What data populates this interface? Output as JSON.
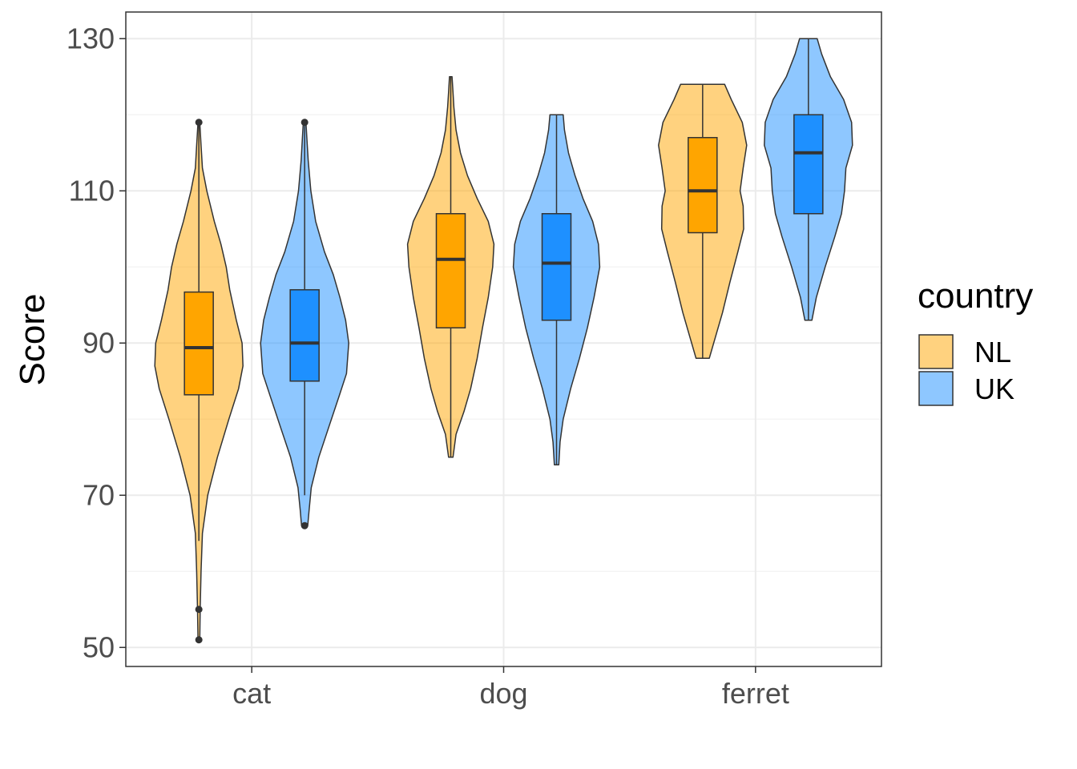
{
  "chart_data": {
    "type": "violin",
    "xlabel": "",
    "ylabel": "Score",
    "categories": [
      "cat",
      "dog",
      "ferret"
    ],
    "y_ticks": [
      "50",
      "70",
      "90",
      "110",
      "130"
    ],
    "ylim": [
      47.5,
      133.5
    ],
    "grid": true,
    "legend": {
      "title": "country",
      "placement": "right",
      "entries": [
        {
          "label": "NL",
          "color": "#ffa500"
        },
        {
          "label": "UK",
          "color": "#1e90ff"
        }
      ]
    },
    "series": [
      {
        "name": "NL",
        "color": "#ffa500",
        "groups": [
          {
            "category": "cat",
            "min": 51,
            "max": 119,
            "box": {
              "q1": 83.2,
              "median": 89.4,
              "q3": 96.7,
              "whisker_low": 64,
              "whisker_high": 119
            },
            "outliers": [
              51,
              55
            ],
            "density": [
              [
                51,
                0.02
              ],
              [
                55,
                0.03
              ],
              [
                60,
                0.05
              ],
              [
                65,
                0.08
              ],
              [
                70,
                0.2
              ],
              [
                75,
                0.42
              ],
              [
                80,
                0.68
              ],
              [
                84,
                0.9
              ],
              [
                87,
                1.0
              ],
              [
                90,
                0.98
              ],
              [
                93,
                0.85
              ],
              [
                97,
                0.7
              ],
              [
                100,
                0.62
              ],
              [
                103,
                0.5
              ],
              [
                106,
                0.35
              ],
              [
                110,
                0.18
              ],
              [
                113,
                0.08
              ],
              [
                116,
                0.05
              ],
              [
                119,
                0.02
              ]
            ]
          },
          {
            "category": "dog",
            "min": 75,
            "max": 125,
            "box": {
              "q1": 92,
              "median": 101,
              "q3": 107,
              "whisker_low": 75,
              "whisker_high": 125
            },
            "outliers": [],
            "density": [
              [
                75,
                0.05
              ],
              [
                78,
                0.12
              ],
              [
                81,
                0.3
              ],
              [
                84,
                0.45
              ],
              [
                88,
                0.6
              ],
              [
                92,
                0.72
              ],
              [
                96,
                0.85
              ],
              [
                100,
                0.95
              ],
              [
                103,
                0.98
              ],
              [
                106,
                0.85
              ],
              [
                109,
                0.6
              ],
              [
                112,
                0.38
              ],
              [
                115,
                0.22
              ],
              [
                118,
                0.12
              ],
              [
                121,
                0.07
              ],
              [
                123,
                0.05
              ],
              [
                125,
                0.03
              ]
            ]
          },
          {
            "category": "ferret",
            "min": 88,
            "max": 124,
            "box": {
              "q1": 104.5,
              "median": 110,
              "q3": 117,
              "whisker_low": 88,
              "whisker_high": 124
            },
            "outliers": [],
            "density": [
              [
                88,
                0.15
              ],
              [
                90,
                0.25
              ],
              [
                94,
                0.45
              ],
              [
                98,
                0.62
              ],
              [
                102,
                0.8
              ],
              [
                105,
                0.93
              ],
              [
                108,
                0.92
              ],
              [
                110,
                0.85
              ],
              [
                113,
                0.92
              ],
              [
                116,
                1.0
              ],
              [
                119,
                0.9
              ],
              [
                122,
                0.65
              ],
              [
                124,
                0.5
              ]
            ]
          }
        ]
      },
      {
        "name": "UK",
        "color": "#1e90ff",
        "groups": [
          {
            "category": "cat",
            "min": 66,
            "max": 119,
            "box": {
              "q1": 85,
              "median": 90,
              "q3": 97,
              "whisker_low": 70,
              "whisker_high": 119
            },
            "outliers": [
              66
            ],
            "density": [
              [
                66,
                0.07
              ],
              [
                68,
                0.1
              ],
              [
                71,
                0.15
              ],
              [
                75,
                0.32
              ],
              [
                79,
                0.55
              ],
              [
                83,
                0.78
              ],
              [
                86,
                0.95
              ],
              [
                90,
                1.0
              ],
              [
                93,
                0.93
              ],
              [
                96,
                0.8
              ],
              [
                99,
                0.65
              ],
              [
                102,
                0.45
              ],
              [
                106,
                0.25
              ],
              [
                110,
                0.14
              ],
              [
                114,
                0.08
              ],
              [
                117,
                0.05
              ],
              [
                119,
                0.03
              ]
            ]
          },
          {
            "category": "dog",
            "min": 74,
            "max": 120,
            "box": {
              "q1": 93,
              "median": 100.5,
              "q3": 107,
              "whisker_low": 74,
              "whisker_high": 120
            },
            "outliers": [],
            "density": [
              [
                74,
                0.05
              ],
              [
                77,
                0.08
              ],
              [
                80,
                0.15
              ],
              [
                84,
                0.32
              ],
              [
                88,
                0.52
              ],
              [
                92,
                0.7
              ],
              [
                96,
                0.85
              ],
              [
                100,
                0.98
              ],
              [
                103,
                0.95
              ],
              [
                106,
                0.82
              ],
              [
                109,
                0.6
              ],
              [
                112,
                0.42
              ],
              [
                115,
                0.27
              ],
              [
                118,
                0.18
              ],
              [
                120,
                0.15
              ]
            ]
          },
          {
            "category": "ferret",
            "min": 93,
            "max": 130,
            "box": {
              "q1": 107,
              "median": 115,
              "q3": 120,
              "whisker_low": 93,
              "whisker_high": 130
            },
            "outliers": [],
            "density": [
              [
                93,
                0.08
              ],
              [
                96,
                0.18
              ],
              [
                100,
                0.38
              ],
              [
                104,
                0.6
              ],
              [
                107,
                0.75
              ],
              [
                110,
                0.82
              ],
              [
                113,
                0.85
              ],
              [
                116,
                1.0
              ],
              [
                119,
                0.98
              ],
              [
                122,
                0.8
              ],
              [
                125,
                0.5
              ],
              [
                128,
                0.3
              ],
              [
                130,
                0.2
              ]
            ]
          }
        ]
      }
    ]
  }
}
